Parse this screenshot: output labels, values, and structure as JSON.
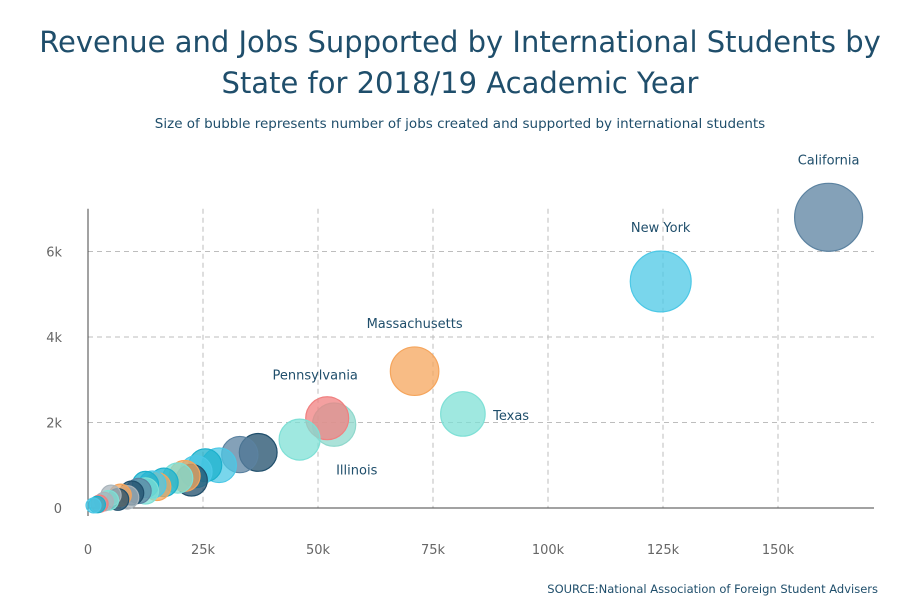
{
  "chart_data": {
    "type": "scatter",
    "title": "Revenue and Jobs Supported by International Students by State for 2018/19 Academic Year",
    "subtitle": "Size of bubble represents number of jobs created and supported by international students",
    "source": "SOURCE:National Association of Foreign Student Advisers",
    "xlabel": "",
    "ylabel": "",
    "xlim": [
      0,
      170000
    ],
    "ylim": [
      0,
      7000
    ],
    "x_ticks": [
      0,
      25000,
      50000,
      75000,
      100000,
      125000,
      150000
    ],
    "x_tick_labels": [
      "0",
      "25k",
      "50k",
      "75k",
      "100k",
      "125k",
      "150k"
    ],
    "y_ticks": [
      0,
      2000,
      4000,
      6000
    ],
    "y_tick_labels": [
      "0",
      "2k",
      "4k",
      "6k"
    ],
    "grid": true,
    "colors": [
      "#5b82a0",
      "#4cc8e6",
      "#f5a55c",
      "#7fe0d6",
      "#f08080",
      "#1f4e6b",
      "#1bb0cc",
      "#a9b4bb"
    ],
    "points": [
      {
        "label": "California",
        "x": 161000,
        "y": 6800,
        "size": 161000,
        "color": "#5b82a0"
      },
      {
        "label": "New York",
        "x": 124500,
        "y": 5300,
        "size": 124000,
        "color": "#4cc8e6"
      },
      {
        "label": "Massachusetts",
        "x": 71000,
        "y": 3200,
        "size": 71000,
        "color": "#f5a55c"
      },
      {
        "label": "Texas",
        "x": 81500,
        "y": 2200,
        "size": 57000,
        "color": "#7fe0d6"
      },
      {
        "label": "Pennsylvania",
        "x": 52000,
        "y": 2100,
        "size": 52000,
        "color": "#f08080"
      },
      {
        "label": "Illinois",
        "x": 53500,
        "y": 1950,
        "size": 53000,
        "color": "#8fd8cc"
      },
      {
        "label": "",
        "x": 46000,
        "y": 1600,
        "size": 46000,
        "color": "#7fe0d6"
      },
      {
        "label": "",
        "x": 37000,
        "y": 1300,
        "size": 37000,
        "color": "#1f4e6b"
      },
      {
        "label": "",
        "x": 33000,
        "y": 1250,
        "size": 33000,
        "color": "#5b82a0"
      },
      {
        "label": "",
        "x": 28500,
        "y": 1000,
        "size": 29000,
        "color": "#4cc8e6"
      },
      {
        "label": "",
        "x": 25500,
        "y": 1000,
        "size": 25000,
        "color": "#1bb0cc"
      },
      {
        "label": "",
        "x": 23500,
        "y": 850,
        "size": 23000,
        "color": "#4cc8e6"
      },
      {
        "label": "",
        "x": 21000,
        "y": 750,
        "size": 21000,
        "color": "#f5a55c"
      },
      {
        "label": "",
        "x": 22500,
        "y": 650,
        "size": 22500,
        "color": "#1f4e6b"
      },
      {
        "label": "",
        "x": 19500,
        "y": 700,
        "size": 19500,
        "color": "#7fe0d6"
      },
      {
        "label": "",
        "x": 16500,
        "y": 600,
        "size": 16500,
        "color": "#1bb0cc"
      },
      {
        "label": "",
        "x": 15000,
        "y": 500,
        "size": 15000,
        "color": "#f5a55c"
      },
      {
        "label": "",
        "x": 14000,
        "y": 550,
        "size": 14000,
        "color": "#4cc8e6"
      },
      {
        "label": "",
        "x": 12500,
        "y": 550,
        "size": 12500,
        "color": "#1bb0cc"
      },
      {
        "label": "",
        "x": 12500,
        "y": 400,
        "size": 12500,
        "color": "#7fe0d6"
      },
      {
        "label": "",
        "x": 11000,
        "y": 400,
        "size": 11000,
        "color": "#5b82a0"
      },
      {
        "label": "",
        "x": 9500,
        "y": 350,
        "size": 9500,
        "color": "#1f4e6b"
      },
      {
        "label": "",
        "x": 8500,
        "y": 250,
        "size": 8500,
        "color": "#a9b4bb"
      },
      {
        "label": "",
        "x": 7000,
        "y": 300,
        "size": 7000,
        "color": "#f5a55c"
      },
      {
        "label": "",
        "x": 6500,
        "y": 200,
        "size": 6500,
        "color": "#1f4e6b"
      },
      {
        "label": "",
        "x": 5000,
        "y": 300,
        "size": 5000,
        "color": "#a9b4bb"
      },
      {
        "label": "",
        "x": 4500,
        "y": 180,
        "size": 4500,
        "color": "#7fe0d6"
      },
      {
        "label": "",
        "x": 3500,
        "y": 150,
        "size": 3500,
        "color": "#a9b4bb"
      },
      {
        "label": "",
        "x": 2500,
        "y": 100,
        "size": 2500,
        "color": "#f08080"
      },
      {
        "label": "",
        "x": 2000,
        "y": 80,
        "size": 2000,
        "color": "#1bb0cc"
      },
      {
        "label": "",
        "x": 1200,
        "y": 60,
        "size": 1200,
        "color": "#4cc8e6"
      }
    ]
  }
}
